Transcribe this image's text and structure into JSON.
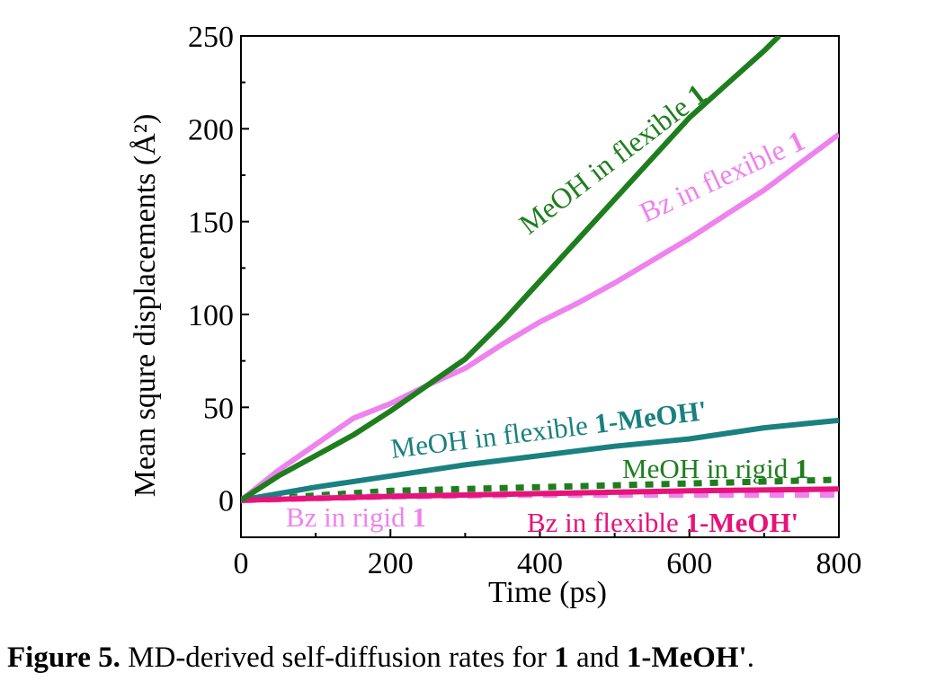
{
  "chart_data": {
    "type": "line",
    "xlabel": "Time (ps)",
    "ylabel": "Mean squre displacements (Å²)",
    "xlim": [
      0,
      800
    ],
    "ylim": [
      -20,
      250
    ],
    "xticks": [
      0,
      200,
      400,
      600,
      800
    ],
    "yticks": [
      0,
      50,
      100,
      150,
      200,
      250
    ],
    "grid": false,
    "legend": "inline labels",
    "series": [
      {
        "label_plain": "MeOH in flexible ",
        "label_bold": "1",
        "color": "#1e7e1e",
        "style": "solid",
        "x": [
          0,
          50,
          100,
          150,
          200,
          250,
          300,
          350,
          400,
          450,
          500,
          550,
          600,
          650,
          700,
          720
        ],
        "y": [
          0,
          13,
          24,
          35,
          48,
          62,
          76,
          96,
          118,
          140,
          162,
          184,
          206,
          224,
          242,
          250
        ]
      },
      {
        "label_plain": "Bz in flexible ",
        "label_bold": "1",
        "color": "#ee82ee",
        "style": "solid",
        "x": [
          0,
          50,
          100,
          150,
          200,
          250,
          300,
          350,
          400,
          450,
          500,
          550,
          600,
          650,
          700,
          750,
          800
        ],
        "y": [
          0,
          16,
          30,
          44,
          52,
          62,
          71,
          84,
          96,
          106,
          117,
          129,
          141,
          154,
          167,
          182,
          197
        ]
      },
      {
        "label_plain": "MeOH in flexible ",
        "label_bold": "1-MeOH'",
        "color": "#1a8080",
        "style": "solid",
        "x": [
          0,
          100,
          200,
          300,
          400,
          500,
          600,
          700,
          800
        ],
        "y": [
          0,
          7,
          13,
          19,
          24,
          29,
          33,
          39,
          43
        ]
      },
      {
        "label_plain": "MeOH in rigid ",
        "label_bold": "1",
        "color": "#1e7e1e",
        "style": "dotted",
        "x": [
          0,
          200,
          400,
          600,
          800
        ],
        "y": [
          0,
          5,
          7,
          9,
          11
        ]
      },
      {
        "label_plain": "Bz in rigid ",
        "label_bold": "1",
        "color": "#ee82ee",
        "style": "dashed",
        "x": [
          0,
          200,
          400,
          600,
          800
        ],
        "y": [
          0,
          2,
          3,
          3,
          3
        ]
      },
      {
        "label_plain": "Bz in flexible ",
        "label_bold": "1-MeOH'",
        "color": "#e6137a",
        "style": "solid",
        "x": [
          0,
          200,
          400,
          600,
          800
        ],
        "y": [
          0,
          2,
          3.5,
          5,
          6
        ]
      }
    ]
  },
  "caption": {
    "label": "Figure 5.",
    "text_a": " MD-derived self-diffusion rates for ",
    "bold_a": "1",
    "text_b": " and ",
    "bold_b": "1-MeOH'",
    "text_c": "."
  }
}
